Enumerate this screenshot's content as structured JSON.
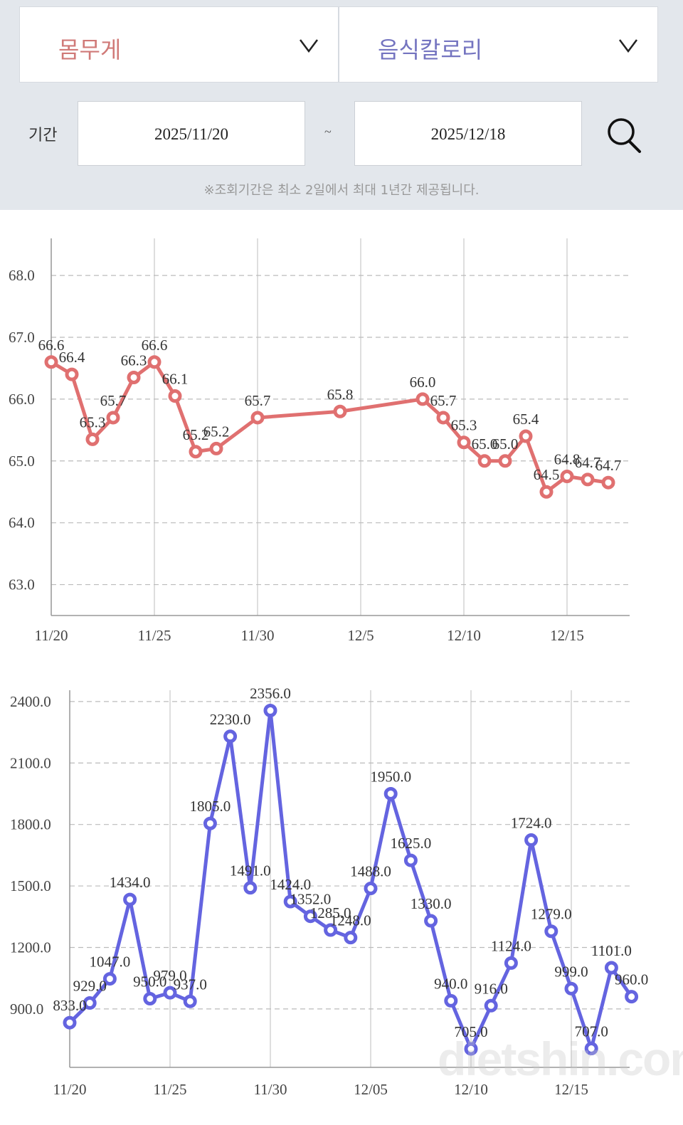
{
  "header": {
    "left_select": {
      "label": "몸무게",
      "color": "#d07a78"
    },
    "right_select": {
      "label": "음식칼로리",
      "color": "#7474c0"
    },
    "period_label": "기간",
    "start_date": "2025/11/20",
    "separator": "~",
    "end_date": "2025/12/18",
    "notice": "※조회기간은 최소 2일에서 최대 1년간 제공됩니다."
  },
  "watermark": "dietshin.com",
  "chart_data": [
    {
      "type": "line",
      "color": "#e07070",
      "x_tick_labels": [
        "11/20",
        "11/25",
        "11/30",
        "12/5",
        "12/10",
        "12/15"
      ],
      "y_tick_labels": [
        "63.0",
        "64.0",
        "65.0",
        "66.0",
        "67.0",
        "68.0"
      ],
      "y_ticks": [
        63,
        64,
        65,
        66,
        67,
        68
      ],
      "ylim": [
        62.5,
        68.6
      ],
      "grid": true,
      "x": [
        "11/20",
        "11/21",
        "11/22",
        "11/23",
        "11/24",
        "11/25",
        "11/26",
        "11/27",
        "11/28",
        "11/30",
        "12/4",
        "12/8",
        "12/9",
        "12/10",
        "12/11",
        "12/12",
        "12/13",
        "12/14",
        "12/15",
        "12/16",
        "12/17"
      ],
      "values": [
        66.6,
        66.4,
        65.35,
        65.7,
        66.35,
        66.6,
        66.05,
        65.15,
        65.2,
        65.7,
        65.8,
        66.0,
        65.7,
        65.3,
        65.0,
        65.0,
        65.4,
        64.5,
        64.75,
        64.7,
        64.65
      ],
      "labels": [
        "66.6",
        "66.4",
        "65.3",
        "65.7",
        "66.3",
        "66.6",
        "66.1",
        "65.2",
        "65.2",
        "65.7",
        "65.8",
        "66.0",
        "65.7",
        "65.3",
        "65.0",
        "65.0",
        "65.4",
        "64.5",
        "64.8",
        "64.7",
        "64.7"
      ]
    },
    {
      "type": "line",
      "color": "#6464e0",
      "x_tick_labels": [
        "11/20",
        "11/25",
        "11/30",
        "12/05",
        "12/10",
        "12/15"
      ],
      "y_tick_labels": [
        "900.0",
        "1200.0",
        "1500.0",
        "1800.0",
        "2100.0",
        "2400.0"
      ],
      "y_ticks": [
        900,
        1200,
        1500,
        1800,
        2100,
        2400
      ],
      "ylim": [
        615,
        2455
      ],
      "grid": true,
      "x": [
        "11/20",
        "11/21",
        "11/22",
        "11/23",
        "11/24",
        "11/25",
        "11/26",
        "11/27",
        "11/28",
        "11/29",
        "11/30",
        "12/1",
        "12/2",
        "12/3",
        "12/4",
        "12/5",
        "12/6",
        "12/7",
        "12/8",
        "12/9",
        "12/10",
        "12/11",
        "12/12",
        "12/13",
        "12/14",
        "12/15",
        "12/16",
        "12/17",
        "12/18"
      ],
      "values": [
        833,
        929,
        1047,
        1434,
        950,
        979,
        937,
        1805,
        2230,
        1491,
        2356,
        1424,
        1352,
        1285,
        1248,
        1488,
        1950,
        1625,
        1330,
        940,
        705,
        916,
        1124,
        1724,
        1279,
        999,
        707,
        1101,
        960
      ],
      "labels": [
        "833.0",
        "929.0",
        "1047.0",
        "1434.0",
        "950.0",
        "979.0",
        "937.0",
        "1805.0",
        "2230.0",
        "1491.0",
        "2356.0",
        "1424.0",
        "1352.0",
        "1285.0",
        "1248.0",
        "1488.0",
        "1950.0",
        "1625.0",
        "1330.0",
        "940.0",
        "705.0",
        "916.0",
        "1124.0",
        "1724.0",
        "1279.0",
        "999.0",
        "707.0",
        "1101.0",
        "960.0"
      ]
    }
  ]
}
